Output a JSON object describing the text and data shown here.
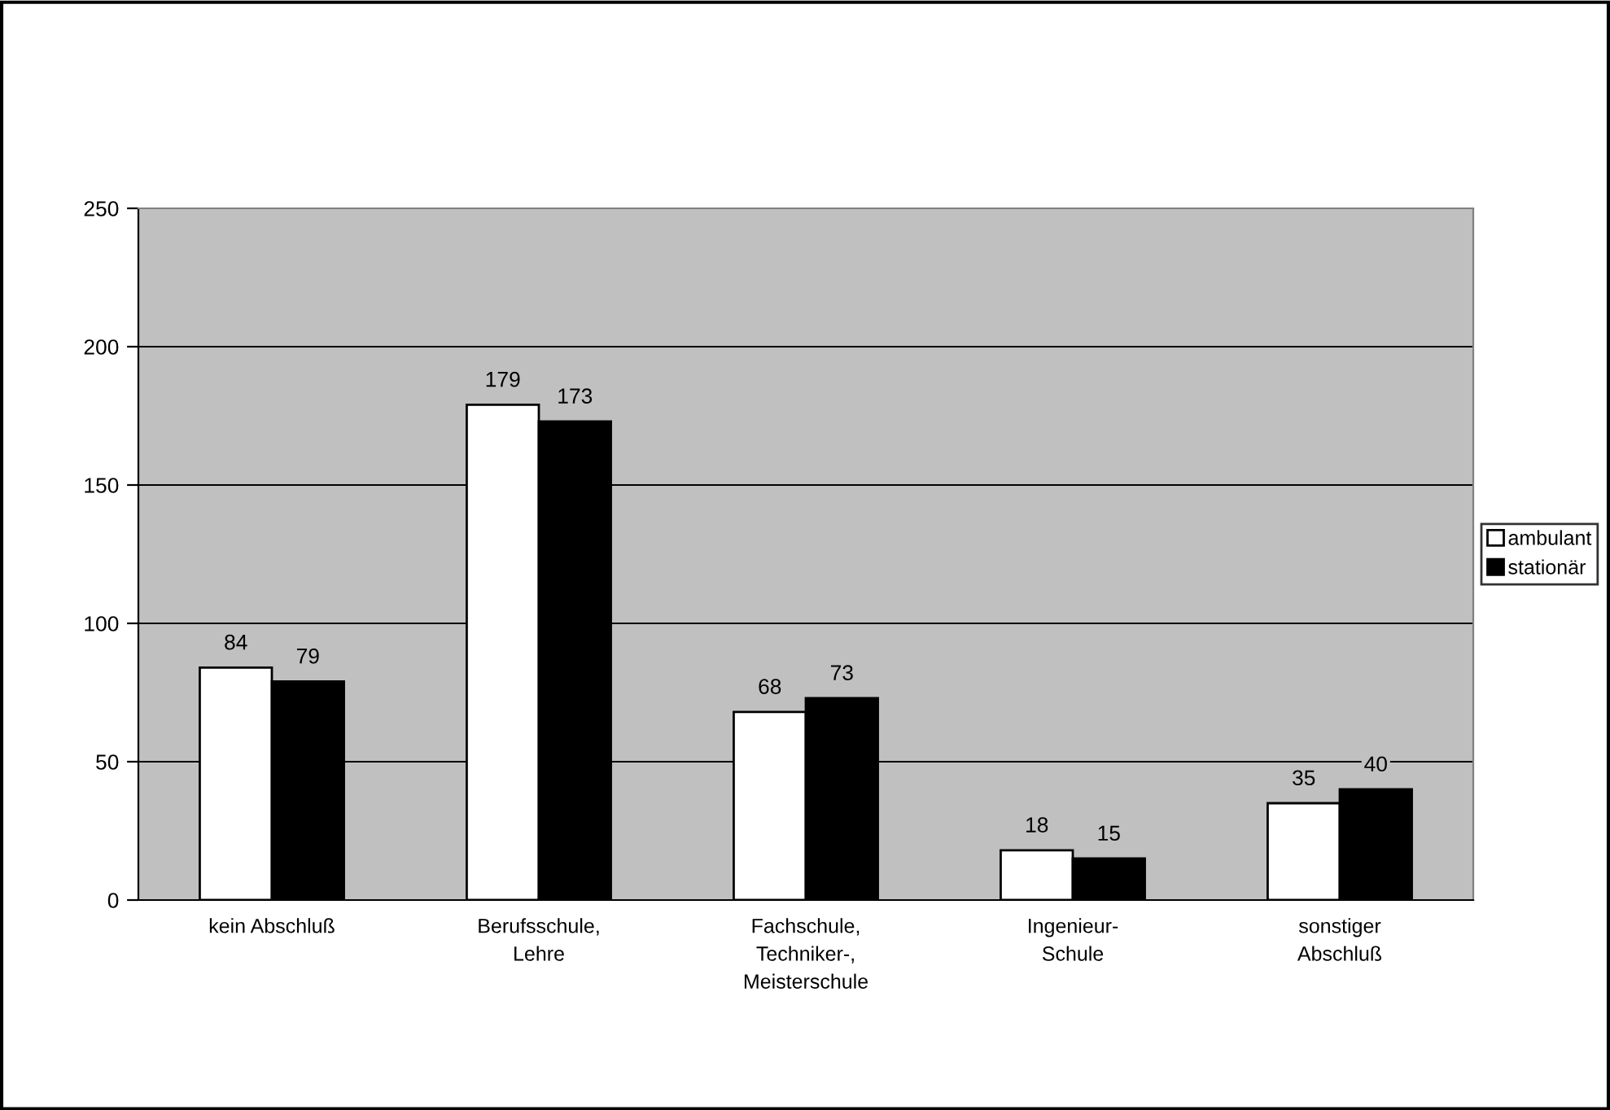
{
  "chart_data": {
    "type": "bar",
    "categories": [
      "kein Abschluß",
      "Berufsschule,\nLehre",
      "Fachschule,\nTechniker-,\nMeisterschule",
      "Ingenieur-\nSchule",
      "sonstiger\nAbschluß"
    ],
    "series": [
      {
        "name": "ambulant",
        "color": "#ffffff",
        "values": [
          84,
          179,
          68,
          18,
          35
        ]
      },
      {
        "name": "stationär",
        "color": "#000000",
        "values": [
          79,
          173,
          73,
          15,
          40
        ]
      }
    ],
    "ylim": [
      0,
      250
    ],
    "yticks": [
      0,
      50,
      100,
      150,
      200,
      250
    ],
    "grid": "y",
    "legend": "right",
    "data_labels": true
  }
}
